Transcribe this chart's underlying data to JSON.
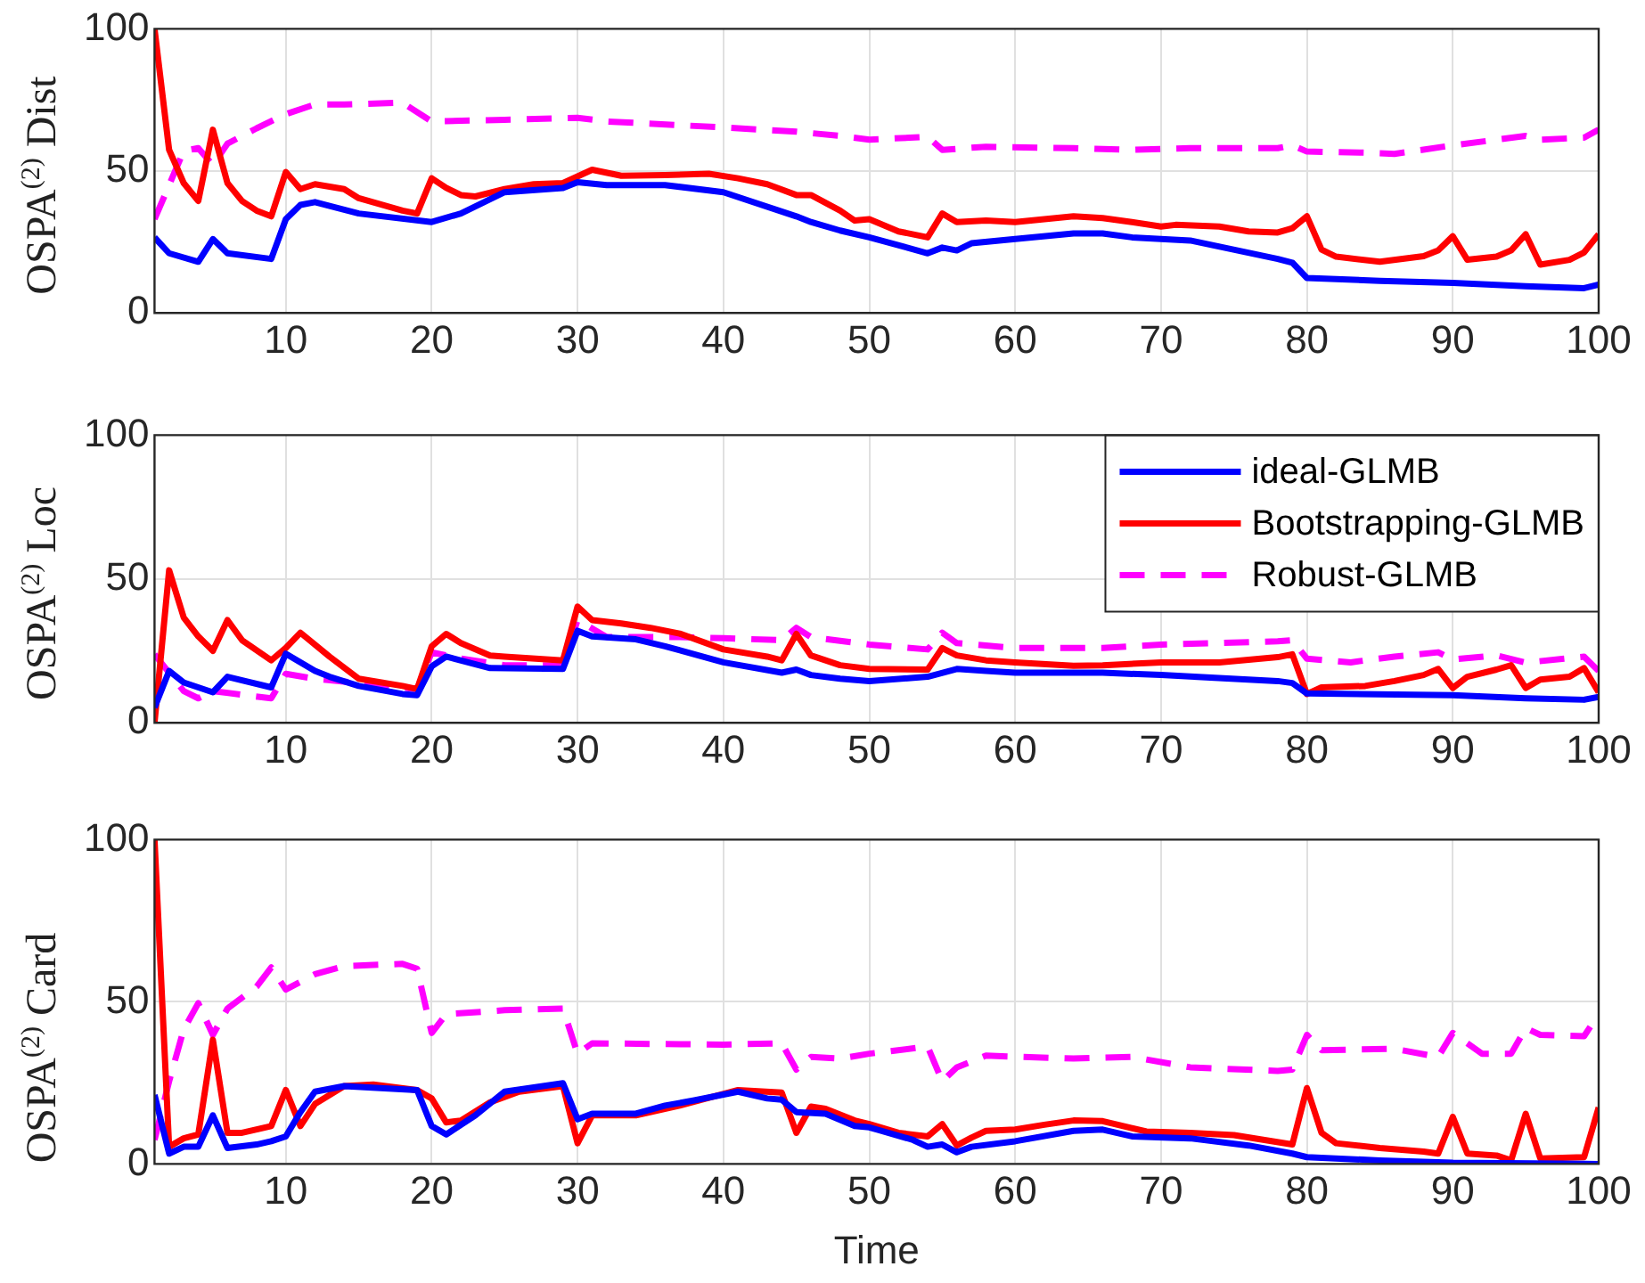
{
  "chart_data": [
    {
      "type": "line",
      "ylabel": "OSPA$^{(2)}$ Dist",
      "xlim": [
        1,
        100
      ],
      "xticks": [
        10,
        20,
        30,
        40,
        50,
        60,
        70,
        80,
        90,
        100
      ],
      "ylim": [
        0,
        100
      ],
      "yticks": [
        0,
        50,
        100
      ],
      "grid": true,
      "marker": "none",
      "series": [
        {
          "color": "#0000ff",
          "line_style": "solid",
          "x": [
            1,
            2,
            4,
            5,
            6,
            9,
            10,
            11,
            12,
            15,
            20,
            22,
            25,
            29,
            30,
            32,
            36,
            40,
            45,
            46,
            48,
            50,
            54,
            55,
            56,
            57,
            60,
            64,
            66,
            68,
            72,
            78,
            79,
            80,
            85,
            90,
            95,
            99,
            100
          ],
          "values": [
            26.6,
            21,
            18,
            26,
            21,
            19,
            33,
            38,
            39,
            35,
            32,
            35,
            42.5,
            44,
            46,
            45,
            45,
            42.5,
            34,
            32,
            29,
            26.6,
            21,
            23,
            22,
            24.5,
            26,
            28,
            28,
            26.6,
            25.5,
            19,
            17.7,
            12.3,
            11.3,
            10.6,
            9.4,
            8.7,
            10
          ]
        },
        {
          "color": "#ff0000",
          "line_style": "solid",
          "x": [
            1,
            2,
            3,
            4,
            5,
            6,
            7,
            8,
            9,
            10,
            11,
            12,
            14,
            15,
            18,
            19,
            20,
            21,
            22,
            23,
            25,
            27,
            29,
            31,
            33,
            36,
            39,
            41,
            43,
            45,
            46,
            48,
            49,
            50,
            52,
            54,
            55,
            56,
            58,
            60,
            64,
            66,
            68,
            70,
            71,
            74,
            76,
            78,
            79,
            80,
            81,
            82,
            85,
            88,
            89,
            90,
            91,
            93,
            94,
            95,
            96,
            98,
            99,
            100
          ],
          "values": [
            100,
            57.4,
            45.7,
            39.4,
            64.5,
            45.7,
            39.4,
            36,
            34,
            49.6,
            43.6,
            45.3,
            43.6,
            40.4,
            36,
            35,
            47.4,
            44,
            41.5,
            41,
            43.6,
            45.3,
            45.7,
            50.4,
            48.3,
            48.5,
            49,
            47.4,
            45.3,
            41.5,
            41.5,
            36,
            32.5,
            33,
            28.7,
            26.6,
            35,
            32,
            32.5,
            32,
            34,
            33.4,
            32,
            30.4,
            31,
            30.4,
            28.7,
            28.3,
            29.8,
            34,
            22.3,
            19.8,
            18,
            20,
            22,
            27,
            18.7,
            19.8,
            22,
            27.7,
            17,
            18.7,
            21.3,
            27.7
          ]
        },
        {
          "color": "#ff00ff",
          "line_style": "dashed",
          "x": [
            1,
            3,
            4,
            5,
            6,
            8,
            10,
            12,
            14,
            18,
            20,
            25,
            30,
            32,
            40,
            45,
            48,
            50,
            54,
            55,
            58,
            64,
            68,
            72,
            78,
            79,
            80,
            84,
            86,
            90,
            95,
            96,
            99,
            100
          ],
          "values": [
            33,
            57,
            58,
            52,
            59.6,
            65,
            70,
            73.4,
            73.4,
            74,
            67.4,
            68,
            68.7,
            67.4,
            65.3,
            63.8,
            62.3,
            61,
            62,
            57.4,
            58.5,
            58,
            57.4,
            58,
            58,
            59,
            56.8,
            56.4,
            56,
            59,
            62.3,
            61,
            61.7,
            64.5
          ]
        }
      ]
    },
    {
      "type": "line",
      "ylabel": "OSPA$^{(2)}$ Loc",
      "xlim": [
        1,
        100
      ],
      "xticks": [
        10,
        20,
        30,
        40,
        50,
        60,
        70,
        80,
        90,
        100
      ],
      "ylim": [
        0,
        100
      ],
      "yticks": [
        0,
        50,
        100
      ],
      "grid": true,
      "marker": "none",
      "legend": "top right",
      "series": [
        {
          "name": "ideal-GLMB",
          "color": "#0000ff",
          "line_style": "solid",
          "x": [
            1,
            2,
            3,
            5,
            6,
            9,
            10,
            12,
            13,
            15,
            18,
            19,
            20,
            21,
            24,
            29,
            30,
            31,
            34,
            36,
            40,
            44,
            45,
            46,
            48,
            50,
            54,
            56,
            58,
            60,
            66,
            70,
            78,
            79,
            80,
            90,
            95,
            99,
            100
          ],
          "values": [
            5.3,
            18,
            14,
            10.6,
            16,
            12.3,
            24,
            18,
            16,
            12.8,
            10,
            9.6,
            19.6,
            23,
            19,
            18.7,
            32,
            30,
            29,
            26.6,
            21,
            17.4,
            18.5,
            16.6,
            15.3,
            14.5,
            16,
            18.7,
            18,
            17.4,
            17.4,
            16.6,
            14.5,
            13.8,
            10.2,
            9.6,
            8.5,
            8,
            9
          ]
        },
        {
          "name": "Bootstrapping-GLMB",
          "color": "#ff0000",
          "line_style": "solid",
          "x": [
            1,
            2,
            3,
            4,
            5,
            6,
            7,
            9,
            10,
            11,
            13,
            15,
            18,
            19,
            20,
            21,
            22,
            24,
            25,
            29,
            30,
            31,
            33,
            35,
            37,
            40,
            43,
            44,
            45,
            46,
            48,
            50,
            54,
            55,
            56,
            58,
            60,
            64,
            66,
            70,
            74,
            78,
            79,
            80,
            81,
            84,
            86,
            88,
            89,
            90,
            91,
            93,
            94,
            95,
            96,
            98,
            99,
            100
          ],
          "values": [
            0,
            53,
            36.6,
            30,
            25,
            35.7,
            28.7,
            21.7,
            26,
            31.3,
            23,
            15.3,
            12.8,
            11.7,
            26.6,
            30.9,
            27.7,
            23.4,
            23,
            21.7,
            40.4,
            35.7,
            34.5,
            33,
            31,
            25.5,
            23,
            21.7,
            30.9,
            23.4,
            20,
            18.7,
            18.5,
            26,
            23.4,
            21.7,
            21,
            19.8,
            20,
            21,
            21,
            22.8,
            23.8,
            10,
            12.3,
            12.8,
            14.5,
            16.6,
            18.7,
            12.1,
            16,
            18.5,
            20,
            12.1,
            15,
            16,
            19,
            10.6
          ]
        },
        {
          "name": "Robust-GLMB",
          "color": "#ff00ff",
          "line_style": "dashed",
          "x": [
            1,
            3,
            4,
            5,
            9,
            10,
            12,
            15,
            19,
            20,
            22,
            25,
            29,
            30,
            32,
            37,
            40,
            44,
            45,
            46,
            50,
            54,
            55,
            56,
            60,
            66,
            70,
            78,
            79,
            80,
            83,
            86,
            89,
            90,
            93,
            95,
            99,
            100
          ],
          "values": [
            23.8,
            11,
            8.5,
            11,
            8.5,
            17,
            15.3,
            13.8,
            11.7,
            24.5,
            22.3,
            20,
            20,
            35.7,
            29.8,
            29.8,
            29.4,
            28.7,
            33,
            29.8,
            27.2,
            25.5,
            31.3,
            27.7,
            26,
            26,
            27.2,
            28.3,
            28.7,
            22.3,
            21,
            23,
            24.5,
            22,
            23.4,
            20.9,
            23,
            18
          ]
        }
      ]
    },
    {
      "type": "line",
      "ylabel": "OSPA$^{(2)}$ Card",
      "xlabel": "Time",
      "xlim": [
        1,
        100
      ],
      "xticks": [
        10,
        20,
        30,
        40,
        50,
        60,
        70,
        80,
        90,
        100
      ],
      "ylim": [
        0,
        100
      ],
      "yticks": [
        0,
        50,
        100
      ],
      "grid": true,
      "marker": "none",
      "series": [
        {
          "color": "#0000ff",
          "line_style": "solid",
          "x": [
            1,
            2,
            3,
            4,
            5,
            6,
            8,
            9,
            10,
            11,
            12,
            14,
            19,
            20,
            21,
            23,
            25,
            29,
            30,
            31,
            34,
            36,
            38,
            41,
            43,
            44,
            45,
            47,
            49,
            50,
            53,
            54,
            55,
            56,
            57,
            60,
            64,
            66,
            68,
            72,
            76,
            79,
            80,
            85,
            90,
            100
          ],
          "values": [
            21.3,
            3.2,
            5.3,
            5.3,
            15,
            4.9,
            6,
            7,
            8.5,
            16,
            22.3,
            24,
            22.8,
            11.7,
            9.1,
            15,
            22.3,
            24.9,
            13.8,
            15.5,
            15.5,
            18,
            19.6,
            22.3,
            20.2,
            19.8,
            16,
            15.5,
            11.7,
            11.3,
            7.4,
            5.3,
            6,
            3.6,
            5.3,
            7,
            10.2,
            10.6,
            8.5,
            7.9,
            5.7,
            3.2,
            2.1,
            1.1,
            0.4,
            0
          ]
        },
        {
          "color": "#ff0000",
          "line_style": "solid",
          "x": [
            1,
            2,
            3,
            4,
            5,
            6,
            7,
            9,
            10,
            11,
            12,
            14,
            16,
            19,
            20,
            21,
            22,
            24,
            26,
            29,
            30,
            31,
            34,
            37,
            41,
            44,
            45,
            46,
            47,
            49,
            50,
            52,
            54,
            55,
            56,
            57,
            58,
            60,
            62,
            64,
            66,
            69,
            72,
            75,
            79,
            80,
            81,
            82,
            85,
            88,
            89,
            90,
            91,
            93,
            94,
            95,
            96,
            99,
            100
          ],
          "values": [
            100,
            5.3,
            7.9,
            9.1,
            38.3,
            9.6,
            9.6,
            11.7,
            22.8,
            11.7,
            18.5,
            24,
            24.5,
            22.8,
            20.2,
            12.8,
            13.4,
            19,
            22.3,
            24,
            6.4,
            15,
            15,
            18,
            22.8,
            22,
            9.6,
            17.7,
            17,
            13.4,
            12.3,
            9.6,
            8.5,
            12.3,
            5.7,
            8.1,
            10.2,
            10.6,
            12.1,
            13.4,
            13.2,
            10,
            9.6,
            8.9,
            6,
            23.4,
            9.6,
            6.4,
            4.9,
            3.8,
            3.2,
            14.5,
            3.2,
            2.6,
            1.1,
            15.5,
            1.7,
            2.1,
            17.4
          ]
        },
        {
          "color": "#ff00ff",
          "line_style": "dashed",
          "x": [
            1,
            2,
            3,
            4,
            5,
            6,
            8,
            9,
            10,
            12,
            14,
            18,
            19,
            20,
            21,
            25,
            29,
            30,
            31,
            40,
            44,
            45,
            46,
            48,
            50,
            54,
            55,
            56,
            58,
            64,
            68,
            72,
            78,
            79,
            80,
            81,
            86,
            89,
            90,
            92,
            94,
            95,
            96,
            99,
            100
          ],
          "values": [
            7.4,
            25.5,
            41.5,
            49.6,
            39.8,
            47.9,
            54.7,
            60.6,
            53.8,
            58.5,
            61,
            61.7,
            60.2,
            40.4,
            46.2,
            47.4,
            47.9,
            34,
            37.2,
            36.8,
            37.2,
            29.1,
            33,
            32.5,
            34,
            36.2,
            25.5,
            29.8,
            33.4,
            32.5,
            33,
            29.8,
            28.7,
            29.1,
            39.8,
            35.1,
            35.5,
            33,
            40.4,
            34,
            34,
            41.9,
            39.8,
            39.4,
            46.2
          ]
        }
      ]
    }
  ]
}
